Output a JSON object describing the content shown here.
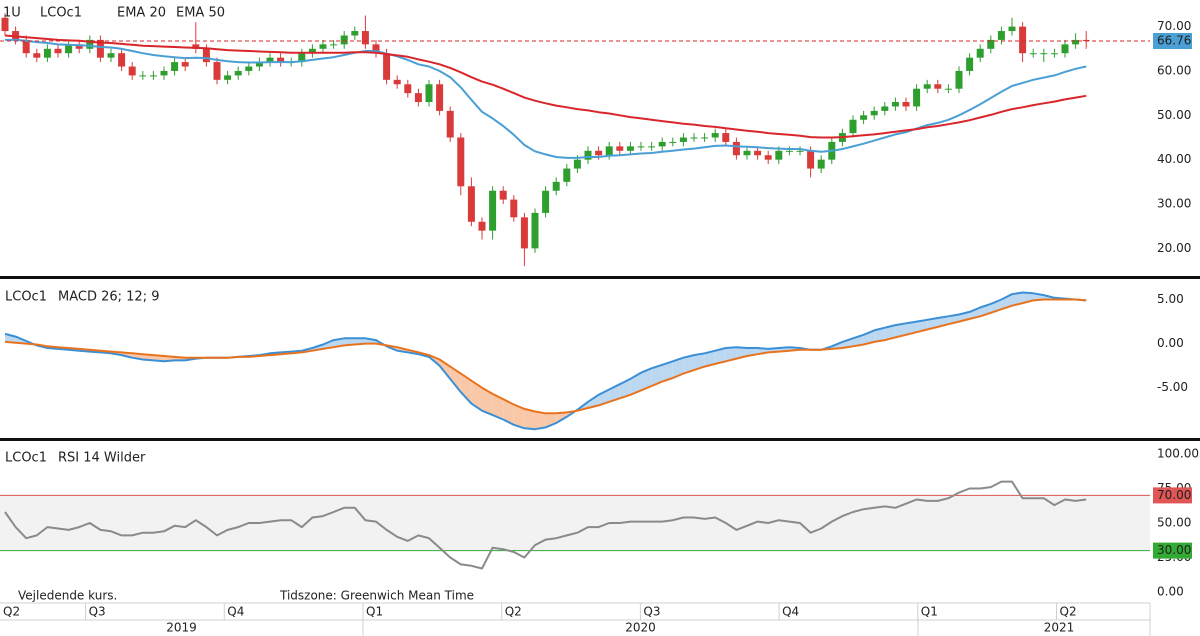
{
  "chart_data": [
    {
      "type": "candlestick",
      "interval": "1U",
      "symbol": "LCOc1",
      "up_color": "#2e9e2e",
      "down_color": "#d93a3a",
      "open": [
        72,
        69,
        67,
        64,
        63,
        65,
        64,
        66,
        65,
        67,
        63,
        64,
        61,
        59,
        59,
        59,
        60,
        62,
        66,
        65,
        62,
        58,
        59,
        60,
        61,
        62,
        63,
        62,
        62,
        64,
        65,
        66,
        66,
        68,
        69,
        66,
        64,
        58,
        57,
        55,
        53,
        57,
        51,
        45,
        34,
        26,
        24,
        33,
        31,
        27,
        20,
        28,
        33,
        35,
        38,
        40,
        42,
        41,
        43,
        42,
        43,
        43,
        43,
        44,
        44,
        45,
        45,
        45,
        46,
        44,
        41,
        42,
        41,
        40,
        42,
        42,
        42,
        38,
        40,
        44,
        46,
        49,
        50,
        51,
        52,
        53,
        52,
        56,
        57,
        56,
        56,
        60,
        63,
        65,
        67,
        69,
        70,
        64,
        64,
        64,
        64,
        66,
        67
      ],
      "high": [
        73,
        70,
        68,
        65,
        66,
        66,
        67,
        67,
        68,
        68,
        65,
        65,
        62,
        60,
        60,
        61,
        63,
        63,
        71,
        66,
        63,
        60,
        61,
        62,
        63,
        64,
        64,
        63,
        65,
        66,
        67,
        67,
        69,
        70,
        72.5,
        67,
        65,
        59,
        58,
        56,
        58,
        58,
        52,
        46,
        36,
        27,
        34,
        34,
        32,
        28,
        29,
        34,
        36,
        39,
        41,
        43,
        43,
        44,
        44,
        44,
        44,
        44,
        45,
        45,
        46,
        46,
        46,
        47,
        47,
        45,
        43,
        43,
        42,
        43,
        43,
        43,
        43,
        41,
        45,
        47,
        50,
        51,
        52,
        53,
        54,
        54,
        57,
        58,
        58,
        57,
        61,
        64,
        66,
        68,
        70,
        72,
        71,
        65,
        65,
        65,
        67,
        68.5,
        69
      ],
      "low": [
        68,
        66,
        63,
        62,
        62,
        63,
        63,
        64,
        64,
        62,
        62,
        60,
        58,
        58,
        58,
        58,
        59,
        60,
        64,
        61,
        57,
        57,
        58,
        59,
        60,
        61,
        61,
        61,
        61,
        63,
        64,
        65,
        65,
        67,
        65,
        63,
        57,
        56,
        54,
        52,
        52,
        50,
        44,
        32,
        25,
        22,
        22,
        30,
        26,
        16,
        19,
        27,
        32,
        34,
        37,
        39,
        40,
        40,
        41,
        41,
        42,
        42,
        42,
        43,
        43,
        44,
        44,
        44,
        43,
        40,
        40,
        40,
        39,
        39,
        41,
        41,
        36,
        37,
        39,
        43,
        45,
        48,
        49,
        50,
        51,
        51,
        51,
        55,
        55,
        55,
        55,
        59,
        62,
        64,
        66,
        68,
        62,
        63,
        62,
        63,
        63,
        65,
        65
      ],
      "close": [
        69,
        67,
        64,
        63,
        65,
        64,
        66,
        65,
        67,
        63,
        64,
        61,
        59,
        59,
        59,
        60,
        62,
        61,
        65,
        62,
        58,
        59,
        60,
        61,
        62,
        63,
        62,
        62,
        64,
        65,
        66,
        66,
        68,
        69,
        66,
        64,
        58,
        57,
        55,
        53,
        57,
        51,
        45,
        34,
        26,
        24,
        33,
        31,
        27,
        20,
        28,
        33,
        35,
        38,
        40,
        42,
        41,
        43,
        42,
        43,
        43,
        43,
        44,
        44,
        45,
        45,
        45,
        46,
        44,
        41,
        42,
        41,
        40,
        42,
        42,
        42,
        38,
        40,
        44,
        46,
        49,
        50,
        51,
        52,
        53,
        52,
        56,
        57,
        56,
        56,
        60,
        63,
        65,
        67,
        69,
        70,
        64,
        64,
        64,
        64,
        66,
        67,
        66.76
      ],
      "overlays": [
        {
          "name": "EMA 20",
          "color": "#4a9fd5",
          "values": [
            67,
            67,
            66.8,
            66.5,
            66.3,
            66,
            65.9,
            65.8,
            65.7,
            65.4,
            65.3,
            65,
            64.5,
            64,
            63.6,
            63.3,
            63.1,
            62.9,
            63,
            62.9,
            62.5,
            62.2,
            62,
            61.9,
            61.9,
            62,
            62,
            62,
            62.2,
            62.5,
            62.8,
            63.1,
            63.6,
            64.1,
            64.5,
            64.5,
            63.9,
            63.3,
            62.5,
            61.5,
            61,
            60,
            58.6,
            56.3,
            53.5,
            50.8,
            49.3,
            47.6,
            45.6,
            43.3,
            41.9,
            41.2,
            40.6,
            40.4,
            40.4,
            40.6,
            40.6,
            40.9,
            41,
            41.2,
            41.4,
            41.5,
            41.8,
            42,
            42.3,
            42.5,
            42.8,
            43.1,
            43.2,
            43,
            42.9,
            42.8,
            42.6,
            42.5,
            42.4,
            42.4,
            42,
            41.8,
            42,
            42.4,
            43,
            43.6,
            44.3,
            45,
            45.7,
            46.2,
            47,
            47.8,
            48.3,
            49,
            50,
            51.2,
            52.5,
            53.9,
            55.3,
            56.6,
            57.3,
            58,
            58.5,
            59,
            59.8,
            60.5,
            61
          ]
        },
        {
          "name": "EMA 50",
          "color": "#d9262b",
          "values": [
            68,
            67.8,
            67.6,
            67.4,
            67.2,
            67,
            66.9,
            66.8,
            66.6,
            66.4,
            66.3,
            66.1,
            65.9,
            65.7,
            65.6,
            65.5,
            65.4,
            65.3,
            65.2,
            65.1,
            64.9,
            64.7,
            64.6,
            64.5,
            64.4,
            64.3,
            64.2,
            64.1,
            64.1,
            64.1,
            64.1,
            64.1,
            64.1,
            64.2,
            64.2,
            64.1,
            63.8,
            63.5,
            63.2,
            62.6,
            62.1,
            61.5,
            60.7,
            59.7,
            58.6,
            57.6,
            56.9,
            56,
            55,
            54,
            53.3,
            52.7,
            52.2,
            51.8,
            51.4,
            51.1,
            50.7,
            50.4,
            50,
            49.6,
            49.3,
            49,
            48.7,
            48.4,
            48.1,
            47.9,
            47.6,
            47.4,
            47.1,
            46.8,
            46.5,
            46.3,
            46,
            45.8,
            45.6,
            45.4,
            45.1,
            45,
            45,
            45.1,
            45.3,
            45.5,
            45.7,
            46,
            46.3,
            46.6,
            46.9,
            47.3,
            47.6,
            48,
            48.4,
            48.9,
            49.5,
            50.1,
            50.8,
            51.4,
            51.8,
            52.3,
            52.7,
            53.1,
            53.6,
            54,
            54.4
          ]
        }
      ],
      "last_price": 66.76,
      "last_price_color": "#d9262b",
      "last_tag_color": "#4a9fd5",
      "ylim": [
        14,
        76
      ],
      "yticks": [
        {
          "value": 70,
          "label": "70.00"
        },
        {
          "value": 60,
          "label": "60.00"
        },
        {
          "value": 50,
          "label": "50.00"
        },
        {
          "value": 40,
          "label": "40.00"
        },
        {
          "value": 30,
          "label": "30.00"
        },
        {
          "value": 20,
          "label": "20.00"
        }
      ]
    },
    {
      "type": "line",
      "symbol": "LCOc1",
      "title": "MACD 26; 12; 9",
      "fill_up": "#bcd8f0",
      "fill_down": "#f8c8a8",
      "series": [
        {
          "color": "#3a8fd6",
          "values": [
            1.1,
            0.8,
            0.3,
            -0.2,
            -0.5,
            -0.6,
            -0.7,
            -0.8,
            -0.9,
            -1,
            -1.1,
            -1.3,
            -1.6,
            -1.8,
            -1.9,
            -2,
            -1.9,
            -1.9,
            -1.7,
            -1.6,
            -1.6,
            -1.6,
            -1.5,
            -1.4,
            -1.3,
            -1.1,
            -1,
            -0.9,
            -0.8,
            -0.5,
            -0.1,
            0.4,
            0.6,
            0.6,
            0.6,
            0.4,
            -0.3,
            -0.8,
            -1,
            -1.2,
            -1.5,
            -2.5,
            -4,
            -5.5,
            -6.8,
            -7.6,
            -8.1,
            -8.6,
            -9.2,
            -9.6,
            -9.7,
            -9.5,
            -9,
            -8.3,
            -7.5,
            -6.6,
            -5.8,
            -5.2,
            -4.6,
            -4,
            -3.3,
            -2.8,
            -2.4,
            -2,
            -1.6,
            -1.3,
            -1.1,
            -0.8,
            -0.5,
            -0.4,
            -0.5,
            -0.5,
            -0.6,
            -0.5,
            -0.4,
            -0.5,
            -0.7,
            -0.7,
            -0.3,
            0.2,
            0.6,
            1,
            1.5,
            1.8,
            2.1,
            2.3,
            2.5,
            2.7,
            2.9,
            3.1,
            3.3,
            3.6,
            4.1,
            4.5,
            5,
            5.6,
            5.8,
            5.7,
            5.5,
            5.2,
            5.1,
            5,
            4.9
          ]
        },
        {
          "color": "#e8731f",
          "values": [
            0.2,
            0.1,
            0,
            -0.1,
            -0.3,
            -0.4,
            -0.5,
            -0.6,
            -0.7,
            -0.8,
            -0.9,
            -1,
            -1.1,
            -1.2,
            -1.3,
            -1.4,
            -1.5,
            -1.6,
            -1.6,
            -1.6,
            -1.6,
            -1.6,
            -1.5,
            -1.5,
            -1.4,
            -1.3,
            -1.2,
            -1.1,
            -1,
            -0.8,
            -0.6,
            -0.4,
            -0.2,
            -0.1,
            0,
            0,
            -0.2,
            -0.4,
            -0.7,
            -1,
            -1.3,
            -1.8,
            -2.6,
            -3.4,
            -4.2,
            -5,
            -5.7,
            -6.3,
            -6.9,
            -7.4,
            -7.7,
            -7.9,
            -7.9,
            -7.8,
            -7.6,
            -7.3,
            -7,
            -6.6,
            -6.2,
            -5.8,
            -5.3,
            -4.8,
            -4.3,
            -3.9,
            -3.4,
            -3,
            -2.6,
            -2.3,
            -2,
            -1.7,
            -1.4,
            -1.2,
            -1,
            -0.9,
            -0.8,
            -0.7,
            -0.7,
            -0.7,
            -0.6,
            -0.5,
            -0.3,
            -0.1,
            0.2,
            0.4,
            0.7,
            1,
            1.3,
            1.6,
            1.9,
            2.2,
            2.5,
            2.8,
            3.1,
            3.5,
            3.9,
            4.3,
            4.6,
            4.9,
            5,
            5,
            5,
            5,
            4.9
          ]
        }
      ],
      "ylim": [
        -10.7,
        7.1
      ],
      "yticks": [
        {
          "value": 5,
          "label": "5.00"
        },
        {
          "value": 0,
          "label": "0.00"
        },
        {
          "value": -5,
          "label": "-5.00"
        }
      ]
    },
    {
      "type": "line",
      "symbol": "LCOc1",
      "title": "RSI 14 Wilder",
      "band_color": "#f2f2f2",
      "levels": [
        {
          "value": 70,
          "label": "70.00",
          "color": "#e05555"
        },
        {
          "value": 30,
          "label": "30.00",
          "color": "#33aa33"
        }
      ],
      "series": [
        {
          "color": "#8a8a8a",
          "values": [
            58,
            47,
            39,
            41,
            47,
            46,
            45,
            47,
            50,
            45,
            44,
            41,
            41,
            43,
            43,
            44,
            48,
            47,
            52,
            47,
            41,
            45,
            47,
            50,
            50,
            51,
            52,
            52,
            47,
            54,
            55,
            58,
            61,
            61,
            52,
            51,
            45,
            40,
            37,
            41,
            39,
            32,
            25,
            20,
            19,
            17,
            32,
            31,
            29,
            25,
            34,
            38,
            39,
            41,
            43,
            47,
            47,
            50,
            50,
            51,
            51,
            51,
            51,
            52,
            54,
            54,
            53,
            54,
            50,
            45,
            48,
            51,
            50,
            52,
            51,
            50,
            43,
            46,
            51,
            55,
            58,
            60,
            61,
            62,
            61,
            64,
            67,
            66,
            66,
            68,
            72,
            75,
            75,
            76,
            80,
            80,
            68,
            68,
            68,
            63,
            67,
            66,
            67
          ]
        }
      ],
      "ylim": [
        -5.8,
        108.7
      ],
      "yticks": [
        {
          "value": 100,
          "label": "100.00"
        },
        {
          "value": 75,
          "label": "75.00"
        },
        {
          "value": 50,
          "label": "50.00"
        },
        {
          "value": 25,
          "label": "25.00"
        },
        {
          "value": 0,
          "label": "0.00"
        }
      ]
    }
  ],
  "time_axis": {
    "quarters": [
      "Q2",
      "Q3",
      "Q4",
      "Q1",
      "Q2",
      "Q3",
      "Q4",
      "Q1",
      "Q2"
    ],
    "years": [
      "2019",
      "2020",
      "2021"
    ]
  },
  "footer": {
    "note": "Vejledende kurs.",
    "timezone": "Tidszone: Greenwich Mean Time"
  }
}
